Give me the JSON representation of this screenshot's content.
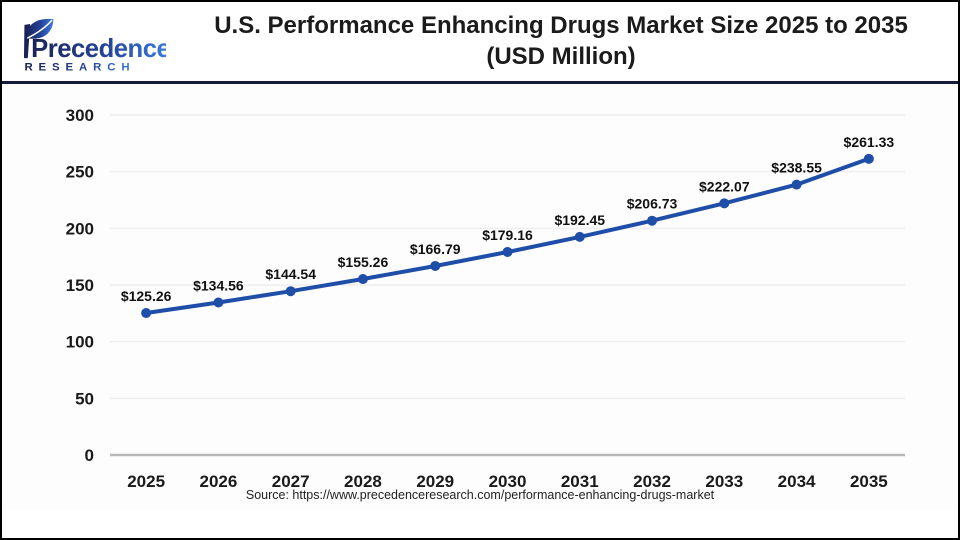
{
  "header": {
    "logo_line1": "Precedence",
    "logo_line2": "RESEARCH",
    "title_line1": "U.S. Performance Enhancing Drugs Market Size 2025 to 2035",
    "title_line2": "(USD Million)"
  },
  "chart_data": {
    "type": "line",
    "title": "U.S. Performance Enhancing Drugs Market Size 2025 to 2035 (USD Million)",
    "categories": [
      "2025",
      "2026",
      "2027",
      "2028",
      "2029",
      "2030",
      "2031",
      "2032",
      "2033",
      "2034",
      "2035"
    ],
    "values": [
      125.26,
      134.56,
      144.54,
      155.26,
      166.79,
      179.16,
      192.45,
      206.73,
      222.07,
      238.55,
      261.33
    ],
    "data_labels": [
      "$125.26",
      "$134.56",
      "$144.54",
      "$155.26",
      "$166.79",
      "$179.16",
      "$192.45",
      "$206.73",
      "$222.07",
      "$238.55",
      "$261.33"
    ],
    "label_prefix": "$",
    "xlabel": "",
    "ylabel": "",
    "ylim": [
      0,
      300
    ],
    "yticks": [
      0,
      50,
      100,
      150,
      200,
      250,
      300
    ],
    "grid": true,
    "legend": "none",
    "marker": "circle"
  },
  "footer": {
    "source": "Source: https://www.precedenceresearch.com/performance-enhancing-drugs-market"
  },
  "colors": {
    "line_blue": "#1F4EA8",
    "logo_navy": "#1B2356",
    "logo_blue": "#3D7DE2",
    "divider_navy": "#161A3C",
    "grid_gray": "#EFEFEF",
    "axis_gray": "#B9B9B9",
    "label_dark": "#111111"
  }
}
